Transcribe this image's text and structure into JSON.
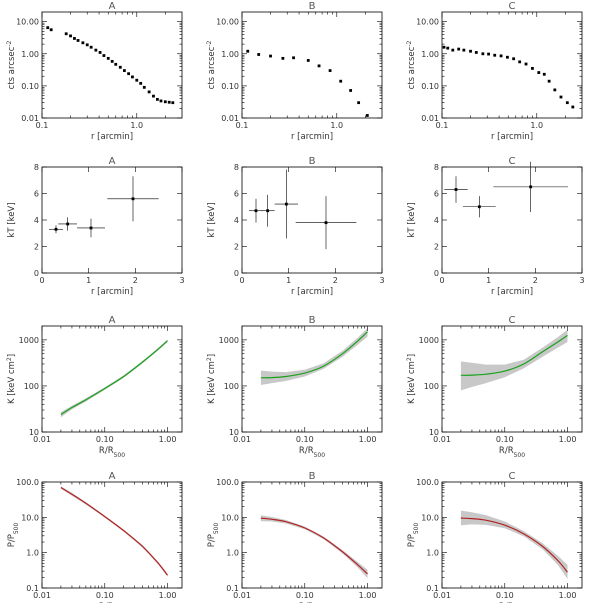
{
  "colors": {
    "axis": "#000000",
    "band": "#c8c8c8",
    "entropy_line": "#1aa01a",
    "pressure_line": "#b22222",
    "point": "#000000"
  },
  "chart_data": [
    {
      "panel": "brightness-A",
      "type": "scatter",
      "title": "A",
      "xlabel": "r [arcmin]",
      "ylabel": "cts arcsec⁻²",
      "xscale": "log",
      "yscale": "log",
      "xlim": [
        0.1,
        3.0
      ],
      "ylim": [
        0.01,
        20.0
      ],
      "xticks": [
        0.1,
        1.0
      ],
      "xtick_labels": [
        "0.1",
        "1.0"
      ],
      "yticks": [
        0.01,
        0.1,
        1.0,
        10.0
      ],
      "ytick_labels": [
        "0.01",
        "0.10",
        "1.00",
        "10.00"
      ],
      "x": [
        0.115,
        0.125,
        0.18,
        0.2,
        0.22,
        0.24,
        0.27,
        0.3,
        0.33,
        0.37,
        0.41,
        0.45,
        0.5,
        0.55,
        0.6,
        0.67,
        0.74,
        0.82,
        0.9,
        1.0,
        1.1,
        1.2,
        1.35,
        1.5,
        1.65,
        1.8,
        2.0,
        2.2,
        2.4
      ],
      "y": [
        6.5,
        5.6,
        4.2,
        3.6,
        3.0,
        2.6,
        2.2,
        1.9,
        1.6,
        1.3,
        1.1,
        0.88,
        0.72,
        0.58,
        0.47,
        0.38,
        0.3,
        0.24,
        0.19,
        0.15,
        0.12,
        0.09,
        0.065,
        0.048,
        0.038,
        0.034,
        0.032,
        0.031,
        0.03
      ]
    },
    {
      "panel": "brightness-B",
      "type": "scatter",
      "title": "B",
      "xlabel": "r [arcmin]",
      "ylabel": "cts arcsec⁻²",
      "xscale": "log",
      "yscale": "log",
      "xlim": [
        0.1,
        3.0
      ],
      "ylim": [
        0.01,
        20.0
      ],
      "xticks": [
        0.1,
        1.0
      ],
      "xtick_labels": [
        "0.1",
        "1.0"
      ],
      "yticks": [
        0.01,
        0.1,
        1.0,
        10.0
      ],
      "ytick_labels": [
        "0.01",
        "0.10",
        "1.00",
        "10.00"
      ],
      "x": [
        0.115,
        0.15,
        0.2,
        0.27,
        0.35,
        0.5,
        0.65,
        0.85,
        1.1,
        1.4,
        1.7,
        2.1
      ],
      "y": [
        1.2,
        0.95,
        0.85,
        0.72,
        0.75,
        0.62,
        0.42,
        0.3,
        0.14,
        0.072,
        0.03,
        0.012
      ]
    },
    {
      "panel": "brightness-C",
      "type": "scatter",
      "title": "C",
      "xlabel": "r [arcmin]",
      "ylabel": "cts arcsec⁻²",
      "xscale": "log",
      "yscale": "log",
      "xlim": [
        0.1,
        3.0
      ],
      "ylim": [
        0.01,
        20.0
      ],
      "xticks": [
        0.1,
        1.0
      ],
      "xtick_labels": [
        "0.1",
        "1.0"
      ],
      "yticks": [
        0.01,
        0.1,
        1.0,
        10.0
      ],
      "ytick_labels": [
        "0.01",
        "0.10",
        "1.00",
        "10.00"
      ],
      "x": [
        0.105,
        0.115,
        0.13,
        0.15,
        0.17,
        0.2,
        0.23,
        0.27,
        0.31,
        0.36,
        0.42,
        0.49,
        0.57,
        0.66,
        0.77,
        0.9,
        1.05,
        1.2,
        1.35,
        1.55,
        1.8,
        2.1,
        2.4
      ],
      "y": [
        1.6,
        1.5,
        1.3,
        1.4,
        1.3,
        1.2,
        1.1,
        1.0,
        0.98,
        0.9,
        0.86,
        0.78,
        0.7,
        0.56,
        0.48,
        0.35,
        0.26,
        0.23,
        0.14,
        0.075,
        0.045,
        0.03,
        0.022
      ]
    },
    {
      "panel": "temperature-A",
      "type": "scatter",
      "title": "A",
      "xlabel": "r [arcmin]",
      "ylabel": "kT [keV]",
      "xscale": "linear",
      "yscale": "linear",
      "xlim": [
        0,
        3
      ],
      "ylim": [
        0,
        8
      ],
      "xticks": [
        0,
        1,
        2,
        3
      ],
      "xtick_labels": [
        "0",
        "1",
        "2",
        "3"
      ],
      "yticks": [
        0,
        2,
        4,
        6,
        8
      ],
      "ytick_labels": [
        "0",
        "2",
        "4",
        "6",
        "8"
      ],
      "x": [
        0.3,
        0.55,
        1.05,
        1.95
      ],
      "xerr": [
        0.15,
        0.2,
        0.3,
        0.55
      ],
      "y": [
        3.3,
        3.7,
        3.4,
        5.6
      ],
      "yerr": [
        0.3,
        0.5,
        0.7,
        1.7
      ]
    },
    {
      "panel": "temperature-B",
      "type": "scatter",
      "title": "B",
      "xlabel": "r [arcmin]",
      "ylabel": "kT [keV]",
      "xscale": "linear",
      "yscale": "linear",
      "xlim": [
        0,
        3
      ],
      "ylim": [
        0,
        8
      ],
      "xticks": [
        0,
        1,
        2,
        3
      ],
      "xtick_labels": [
        "0",
        "1",
        "2",
        "3"
      ],
      "yticks": [
        0,
        2,
        4,
        6,
        8
      ],
      "ytick_labels": [
        "0",
        "2",
        "4",
        "6",
        "8"
      ],
      "x": [
        0.3,
        0.55,
        0.95,
        1.8
      ],
      "xerr": [
        0.15,
        0.15,
        0.25,
        0.65
      ],
      "y": [
        4.7,
        4.7,
        5.2,
        3.8
      ],
      "yerr": [
        0.9,
        1.2,
        2.6,
        2.0
      ]
    },
    {
      "panel": "temperature-C",
      "type": "scatter",
      "title": "C",
      "xlabel": "r [arcmin]",
      "ylabel": "kT [keV]",
      "xscale": "linear",
      "yscale": "linear",
      "xlim": [
        0,
        3
      ],
      "ylim": [
        0,
        8
      ],
      "xticks": [
        0,
        1,
        2,
        3
      ],
      "xtick_labels": [
        "0",
        "1",
        "2",
        "3"
      ],
      "yticks": [
        0,
        2,
        4,
        6,
        8
      ],
      "ytick_labels": [
        "0",
        "2",
        "4",
        "6",
        "8"
      ],
      "x": [
        0.3,
        0.8,
        1.9
      ],
      "xerr": [
        0.25,
        0.35,
        0.8
      ],
      "y": [
        6.3,
        5.0,
        6.5
      ],
      "yerr": [
        1.0,
        0.8,
        1.9
      ]
    },
    {
      "panel": "entropy-A",
      "type": "line",
      "title": "A",
      "xlabel": "R/R₅₀₀",
      "ylabel": "K [keV cm²]",
      "xscale": "log",
      "yscale": "log",
      "xlim": [
        0.01,
        1.7
      ],
      "ylim": [
        10,
        2000
      ],
      "xticks": [
        0.01,
        0.1,
        1.0
      ],
      "xtick_labels": [
        "0.01",
        "0.10",
        "1.00"
      ],
      "yticks": [
        10,
        100,
        1000
      ],
      "ytick_labels": [
        "10",
        "100",
        "1000"
      ],
      "x": [
        0.02,
        0.03,
        0.05,
        0.1,
        0.2,
        0.4,
        0.7,
        1.0
      ],
      "y": [
        24,
        34,
        50,
        88,
        160,
        330,
        620,
        960
      ],
      "band_lower": [
        21,
        31,
        46,
        82,
        150,
        310,
        580,
        900
      ],
      "band_upper": [
        27,
        37,
        54,
        94,
        170,
        350,
        660,
        1020
      ]
    },
    {
      "panel": "entropy-B",
      "type": "line",
      "title": "B",
      "xlabel": "R/R₅₀₀",
      "ylabel": "K [keV cm²]",
      "xscale": "log",
      "yscale": "log",
      "xlim": [
        0.01,
        1.7
      ],
      "ylim": [
        10,
        2000
      ],
      "xticks": [
        0.01,
        0.1,
        1.0
      ],
      "xtick_labels": [
        "0.01",
        "0.10",
        "1.00"
      ],
      "yticks": [
        10,
        100,
        1000
      ],
      "ytick_labels": [
        "10",
        "100",
        "1000"
      ],
      "x": [
        0.02,
        0.03,
        0.05,
        0.1,
        0.2,
        0.4,
        0.7,
        1.0
      ],
      "y": [
        150,
        152,
        160,
        190,
        270,
        500,
        950,
        1500
      ],
      "band_lower": [
        105,
        115,
        128,
        160,
        235,
        430,
        790,
        1180
      ],
      "band_upper": [
        215,
        205,
        200,
        225,
        310,
        580,
        1120,
        1800
      ]
    },
    {
      "panel": "entropy-C",
      "type": "line",
      "title": "C",
      "xlabel": "R/R₅₀₀",
      "ylabel": "K [keV cm²]",
      "xscale": "log",
      "yscale": "log",
      "xlim": [
        0.01,
        1.7
      ],
      "ylim": [
        10,
        2000
      ],
      "xticks": [
        0.01,
        0.1,
        1.0
      ],
      "xtick_labels": [
        "0.01",
        "0.10",
        "1.00"
      ],
      "yticks": [
        10,
        100,
        1000
      ],
      "ytick_labels": [
        "10",
        "100",
        "1000"
      ],
      "x": [
        0.02,
        0.03,
        0.05,
        0.1,
        0.2,
        0.4,
        0.7,
        1.0
      ],
      "y": [
        170,
        172,
        180,
        210,
        300,
        550,
        900,
        1250
      ],
      "band_lower": [
        80,
        95,
        115,
        155,
        240,
        430,
        680,
        900
      ],
      "band_upper": [
        340,
        320,
        290,
        290,
        370,
        680,
        1150,
        1650
      ]
    },
    {
      "panel": "pressure-A",
      "type": "line",
      "title": "A",
      "xlabel": "R/R₅₀₀",
      "ylabel": "P/P₅₀₀",
      "xscale": "log",
      "yscale": "log",
      "xlim": [
        0.01,
        1.7
      ],
      "ylim": [
        0.1,
        100
      ],
      "xticks": [
        0.01,
        0.1,
        1.0
      ],
      "xtick_labels": [
        "0.01",
        "0.10",
        "1.00"
      ],
      "yticks": [
        0.1,
        1,
        10,
        100
      ],
      "ytick_labels": [
        "0.1",
        "1.0",
        "10.0",
        "100.0"
      ],
      "x": [
        0.02,
        0.03,
        0.05,
        0.1,
        0.2,
        0.4,
        0.7,
        1.0
      ],
      "y": [
        70,
        45,
        25,
        10.5,
        4.2,
        1.5,
        0.52,
        0.23
      ],
      "band_lower": [
        64,
        41,
        23,
        9.8,
        3.9,
        1.38,
        0.48,
        0.21
      ],
      "band_upper": [
        76,
        49,
        27,
        11.2,
        4.5,
        1.62,
        0.56,
        0.25
      ]
    },
    {
      "panel": "pressure-B",
      "type": "line",
      "title": "B",
      "xlabel": "R/R₅₀₀",
      "ylabel": "P/P₅₀₀",
      "xscale": "log",
      "yscale": "log",
      "xlim": [
        0.01,
        1.7
      ],
      "ylim": [
        0.1,
        100
      ],
      "xticks": [
        0.01,
        0.1,
        1.0
      ],
      "xtick_labels": [
        "0.01",
        "0.10",
        "1.00"
      ],
      "yticks": [
        0.1,
        1,
        10,
        100
      ],
      "ytick_labels": [
        "0.1",
        "1.0",
        "10.0",
        "100.0"
      ],
      "x": [
        0.02,
        0.03,
        0.05,
        0.1,
        0.2,
        0.4,
        0.7,
        1.0
      ],
      "y": [
        9.5,
        8.8,
        7.5,
        5.0,
        2.6,
        1.05,
        0.45,
        0.25
      ],
      "band_lower": [
        7.8,
        7.6,
        6.7,
        4.6,
        2.4,
        0.95,
        0.38,
        0.19
      ],
      "band_upper": [
        11.5,
        10.2,
        8.4,
        5.5,
        2.85,
        1.18,
        0.54,
        0.33
      ]
    },
    {
      "panel": "pressure-C",
      "type": "line",
      "title": "C",
      "xlabel": "R/R₅₀₀",
      "ylabel": "P/P₅₀₀",
      "xscale": "log",
      "yscale": "log",
      "xlim": [
        0.01,
        1.7
      ],
      "ylim": [
        0.1,
        100
      ],
      "xticks": [
        0.01,
        0.1,
        1.0
      ],
      "xtick_labels": [
        "0.01",
        "0.10",
        "1.00"
      ],
      "yticks": [
        0.1,
        1,
        10,
        100
      ],
      "ytick_labels": [
        "0.1",
        "1.0",
        "10.0",
        "100.0"
      ],
      "x": [
        0.02,
        0.03,
        0.05,
        0.1,
        0.2,
        0.4,
        0.7,
        1.0
      ],
      "y": [
        9.5,
        9.2,
        8.3,
        6.0,
        3.4,
        1.5,
        0.6,
        0.28
      ],
      "band_lower": [
        6.0,
        6.3,
        6.1,
        4.9,
        2.9,
        1.25,
        0.45,
        0.18
      ],
      "band_upper": [
        15.5,
        14.0,
        11.6,
        7.6,
        4.1,
        1.85,
        0.82,
        0.45
      ]
    }
  ]
}
